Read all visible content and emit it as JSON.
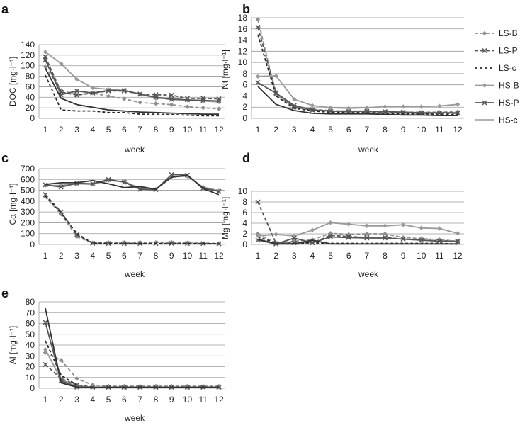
{
  "x_label": "week",
  "weeks": [
    "1",
    "2",
    "3",
    "4",
    "5",
    "6",
    "7",
    "8",
    "9",
    "10",
    "11",
    "12"
  ],
  "legend": [
    {
      "key": "LS-B",
      "label": "LS-B"
    },
    {
      "key": "LS-P",
      "label": "LS-P"
    },
    {
      "key": "LS-c",
      "label": "LS-c"
    },
    {
      "key": "HS-B",
      "label": "HS-B"
    },
    {
      "key": "HS-P",
      "label": "HS-P"
    },
    {
      "key": "HS-c",
      "label": "HS-c"
    }
  ],
  "styles": {
    "LS-B": {
      "color": "#8f8f8f",
      "dash": "5,3",
      "marker": "diamond"
    },
    "LS-P": {
      "color": "#555555",
      "dash": "5,3",
      "marker": "x"
    },
    "LS-c": {
      "color": "#2a2a2a",
      "dash": "4,3",
      "marker": "none"
    },
    "HS-B": {
      "color": "#999999",
      "dash": "",
      "marker": "diamond"
    },
    "HS-P": {
      "color": "#555555",
      "dash": "",
      "marker": "x"
    },
    "HS-c": {
      "color": "#333333",
      "dash": "",
      "marker": "none"
    }
  },
  "chart_data": [
    {
      "panel": "a",
      "type": "line",
      "ylabel": "DOC [mg·l⁻¹]",
      "xlabel": "week",
      "ylim": [
        0,
        140
      ],
      "yticks": [
        0,
        20,
        40,
        60,
        80,
        100,
        120,
        140
      ],
      "categories": [
        "1",
        "2",
        "3",
        "4",
        "5",
        "6",
        "7",
        "8",
        "9",
        "10",
        "11",
        "12"
      ],
      "series": [
        {
          "name": "LS-B",
          "values": [
            98,
            53,
            45,
            48,
            42,
            37,
            30,
            28,
            26,
            22,
            20,
            18
          ]
        },
        {
          "name": "LS-P",
          "values": [
            117,
            50,
            44,
            48,
            52,
            52,
            46,
            45,
            44,
            38,
            38,
            37
          ]
        },
        {
          "name": "LS-c",
          "values": [
            82,
            16,
            14,
            14,
            11,
            11,
            8,
            8,
            7,
            6,
            5,
            5
          ]
        },
        {
          "name": "HS-B",
          "values": [
            126,
            104,
            74,
            58,
            55,
            53,
            46,
            38,
            38,
            35,
            33,
            31
          ]
        },
        {
          "name": "HS-P",
          "values": [
            111,
            45,
            52,
            48,
            53,
            53,
            46,
            40,
            36,
            35,
            34,
            33
          ]
        },
        {
          "name": "HS-c",
          "values": [
            95,
            38,
            26,
            21,
            16,
            14,
            12,
            11,
            10,
            9,
            8,
            8
          ]
        }
      ]
    },
    {
      "panel": "b",
      "type": "line",
      "ylabel": "Nt [mg·l⁻¹]",
      "xlabel": "week",
      "ylim": [
        0,
        18
      ],
      "yticks": [
        0,
        2,
        4,
        6,
        8,
        10,
        12,
        14,
        16,
        18
      ],
      "categories": [
        "1",
        "2",
        "3",
        "4",
        "5",
        "6",
        "7",
        "8",
        "9",
        "10",
        "11",
        "12"
      ],
      "series": [
        {
          "name": "LS-B",
          "values": [
            17.7,
            4.2,
            2.0,
            1.6,
            1.4,
            1.3,
            1.3,
            1.2,
            1.1,
            1.1,
            1.1,
            1.2
          ]
        },
        {
          "name": "LS-P",
          "values": [
            16.3,
            4.6,
            2.0,
            1.5,
            1.3,
            1.2,
            1.2,
            1.1,
            1.0,
            0.9,
            0.9,
            0.9
          ]
        },
        {
          "name": "LS-c",
          "values": [
            15.0,
            4.0,
            1.8,
            1.3,
            1.1,
            1.0,
            1.0,
            0.9,
            0.8,
            0.8,
            0.7,
            0.7
          ]
        },
        {
          "name": "HS-B",
          "values": [
            7.5,
            7.6,
            3.4,
            2.3,
            1.9,
            1.8,
            1.9,
            2.1,
            2.1,
            2.1,
            2.2,
            2.5
          ]
        },
        {
          "name": "HS-P",
          "values": [
            6.4,
            4.5,
            2.3,
            1.5,
            1.3,
            1.2,
            1.3,
            1.2,
            1.1,
            1.0,
            1.0,
            1.0
          ]
        },
        {
          "name": "HS-c",
          "values": [
            5.7,
            2.5,
            1.4,
            0.9,
            0.8,
            0.8,
            0.8,
            0.7,
            0.6,
            0.6,
            0.5,
            0.5
          ]
        }
      ]
    },
    {
      "panel": "c",
      "type": "line",
      "ylabel": "Ca [mg·l⁻¹]",
      "xlabel": "week",
      "ylim": [
        0,
        700
      ],
      "yticks": [
        0,
        100,
        200,
        300,
        400,
        500,
        600,
        700
      ],
      "categories": [
        "1",
        "2",
        "3",
        "4",
        "5",
        "6",
        "7",
        "8",
        "9",
        "10",
        "11",
        "12"
      ],
      "series": [
        {
          "name": "LS-B",
          "values": [
            440,
            280,
            70,
            15,
            18,
            18,
            20,
            18,
            20,
            15,
            12,
            10
          ]
        },
        {
          "name": "LS-P",
          "values": [
            460,
            300,
            90,
            10,
            8,
            8,
            8,
            8,
            10,
            8,
            8,
            5
          ]
        },
        {
          "name": "LS-c",
          "values": [
            450,
            290,
            100,
            12,
            10,
            10,
            8,
            8,
            8,
            8,
            8,
            6
          ]
        },
        {
          "name": "HS-B",
          "values": [
            545,
            545,
            560,
            555,
            590,
            580,
            520,
            510,
            625,
            630,
            530,
            495
          ]
        },
        {
          "name": "HS-P",
          "values": [
            550,
            530,
            565,
            560,
            600,
            575,
            510,
            505,
            645,
            640,
            520,
            490
          ]
        },
        {
          "name": "HS-c",
          "values": [
            555,
            570,
            570,
            590,
            560,
            525,
            535,
            510,
            620,
            640,
            515,
            460
          ]
        }
      ]
    },
    {
      "panel": "d",
      "type": "line",
      "ylabel": "Mg [mg·l⁻¹]",
      "xlabel": "week",
      "ylim": [
        0,
        10
      ],
      "yticks": [
        0,
        2,
        4,
        6,
        8,
        10
      ],
      "categories": [
        "1",
        "2",
        "3",
        "4",
        "5",
        "6",
        "7",
        "8",
        "9",
        "10",
        "11",
        "12"
      ],
      "series": [
        {
          "name": "LS-B",
          "values": [
            2.0,
            0.3,
            0.6,
            0.9,
            2.1,
            1.9,
            2.0,
            2.0,
            1.3,
            1.1,
            0.9,
            0.6
          ]
        },
        {
          "name": "LS-P",
          "values": [
            8.0,
            0.2,
            0.3,
            0.3,
            1.7,
            1.5,
            1.3,
            1.3,
            1.0,
            0.8,
            0.7,
            0.6
          ]
        },
        {
          "name": "LS-c",
          "values": [
            1.5,
            0.2,
            0.2,
            0.3,
            0.2,
            0.2,
            0.2,
            0.2,
            0.2,
            0.2,
            0.2,
            0.1
          ]
        },
        {
          "name": "HS-B",
          "values": [
            1.6,
            1.9,
            1.6,
            2.7,
            4.1,
            3.8,
            3.5,
            3.5,
            3.7,
            3.1,
            3.0,
            2.1
          ]
        },
        {
          "name": "HS-P",
          "values": [
            0.8,
            0.1,
            1.2,
            0.3,
            1.4,
            1.3,
            1.2,
            1.2,
            1.0,
            0.8,
            0.6,
            0.5
          ]
        },
        {
          "name": "HS-c",
          "values": [
            1.0,
            0.1,
            0.1,
            0.8,
            0.1,
            0.1,
            0.1,
            0.1,
            0.1,
            0.1,
            0.1,
            0.1
          ]
        }
      ]
    },
    {
      "panel": "e",
      "type": "line",
      "ylabel": "Al [mg·l⁻¹]",
      "xlabel": "week",
      "ylim": [
        0,
        80
      ],
      "yticks": [
        0,
        10,
        20,
        30,
        40,
        50,
        60,
        70,
        80
      ],
      "categories": [
        "1",
        "2",
        "3",
        "4",
        "5",
        "6",
        "7",
        "8",
        "9",
        "10",
        "11",
        "12"
      ],
      "series": [
        {
          "name": "LS-B",
          "values": [
            33,
            26,
            9,
            3,
            2,
            2,
            2,
            2,
            2,
            2,
            2,
            2
          ]
        },
        {
          "name": "LS-P",
          "values": [
            22,
            9,
            3,
            1,
            1,
            1,
            1,
            1,
            1,
            1,
            1,
            1
          ]
        },
        {
          "name": "LS-c",
          "values": [
            44,
            12,
            3,
            1,
            1,
            1,
            1,
            1,
            1,
            1,
            1,
            1
          ]
        },
        {
          "name": "HS-B",
          "values": [
            36,
            8,
            2,
            1,
            1,
            1,
            1,
            1,
            1,
            1,
            1,
            1
          ]
        },
        {
          "name": "HS-P",
          "values": [
            61,
            7,
            1,
            1,
            1,
            1,
            1,
            1,
            1,
            1,
            1,
            1
          ]
        },
        {
          "name": "HS-c",
          "values": [
            74,
            5,
            1,
            1,
            1,
            1,
            1,
            1,
            1,
            1,
            1,
            1
          ]
        }
      ]
    }
  ]
}
